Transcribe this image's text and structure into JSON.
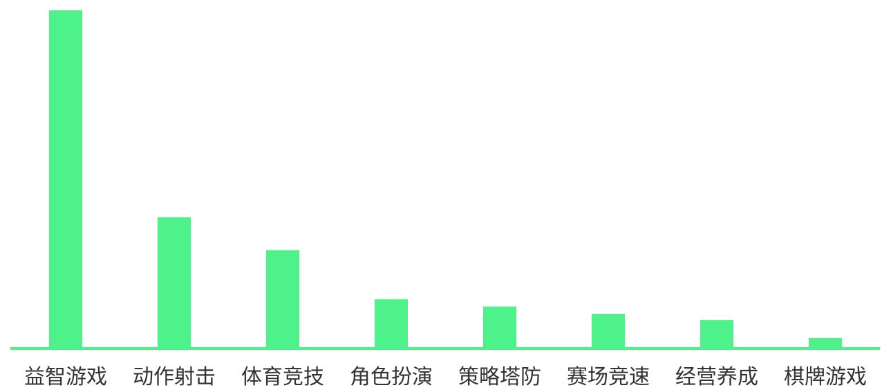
{
  "chart_data": {
    "type": "bar",
    "categories": [
      "益智游戏",
      "动作射击",
      "体育竞技",
      "角色扮演",
      "策略塔防",
      "赛场竞速",
      "经营养成",
      "棋牌游戏"
    ],
    "values": [
      100,
      38.8,
      29.1,
      14.6,
      12.4,
      10.2,
      8.4,
      3.1
    ],
    "ylim": [
      0,
      100
    ],
    "grid": false,
    "legend": "none",
    "title": "",
    "xlabel": "",
    "ylabel": "",
    "colors": {
      "bar": "#4ef28a",
      "axis": "#4ef28a",
      "label": "#333333"
    }
  }
}
